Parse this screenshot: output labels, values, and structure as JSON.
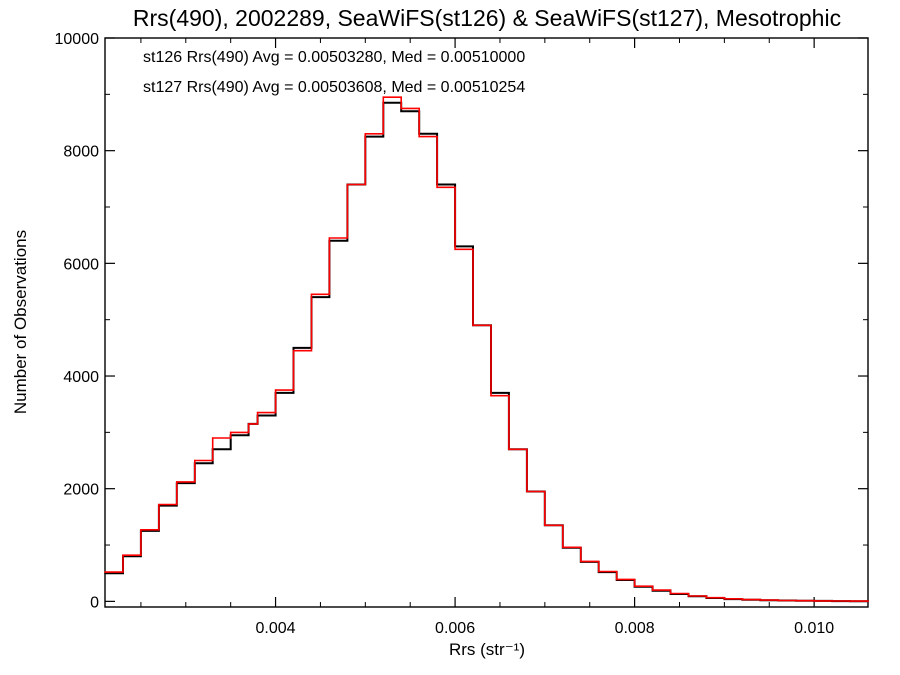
{
  "chart_data": {
    "type": "line",
    "title": "Rrs(490), 2002289, SeaWiFS(st126) & SeaWiFS(st127), Mesotrophic",
    "xlabel": "Rrs (str⁻¹)",
    "ylabel": "Number of Observations",
    "xlim": [
      0.0021,
      0.0106
    ],
    "ylim": [
      -100,
      10000
    ],
    "x_ticks": [
      0.004,
      0.006,
      0.008,
      0.01
    ],
    "x_tick_labels": [
      "0.004",
      "0.006",
      "0.008",
      "0.010"
    ],
    "y_ticks": [
      0,
      2000,
      4000,
      6000,
      8000,
      10000
    ],
    "y_tick_labels": [
      "0",
      "2000",
      "4000",
      "6000",
      "8000",
      "10000"
    ],
    "grid": false,
    "legend_position": "top-left",
    "series": [
      {
        "name": "st126",
        "color": "#000000",
        "annotation": "st126 Rrs(490) Avg = 0.00503280, Med = 0.00510000",
        "step": "histogram",
        "x": [
          0.0021,
          0.0023,
          0.0025,
          0.0027,
          0.0029,
          0.0031,
          0.0033,
          0.0035,
          0.0037,
          0.0038,
          0.004,
          0.0042,
          0.0044,
          0.0046,
          0.0048,
          0.005,
          0.0052,
          0.0054,
          0.0056,
          0.0058,
          0.006,
          0.0062,
          0.0064,
          0.0066,
          0.0068,
          0.007,
          0.0072,
          0.0074,
          0.0076,
          0.0078,
          0.008,
          0.0082,
          0.0084,
          0.0086,
          0.0088,
          0.009,
          0.0092,
          0.0094,
          0.0096,
          0.0098,
          0.01,
          0.0102,
          0.0104,
          0.0106
        ],
        "y": [
          500,
          800,
          1250,
          1700,
          2100,
          2450,
          2700,
          2950,
          3150,
          3300,
          3700,
          4500,
          5400,
          6400,
          7400,
          8250,
          8850,
          8700,
          8300,
          7400,
          6300,
          4900,
          3700,
          2700,
          1950,
          1350,
          950,
          700,
          520,
          380,
          260,
          190,
          130,
          90,
          60,
          40,
          30,
          20,
          15,
          10,
          8,
          5,
          3,
          2
        ]
      },
      {
        "name": "st127",
        "color": "#ff0000",
        "annotation": "st127 Rrs(490) Avg = 0.00503608, Med = 0.00510254",
        "step": "histogram",
        "x": [
          0.0021,
          0.0023,
          0.0025,
          0.0027,
          0.0029,
          0.0031,
          0.0033,
          0.0035,
          0.0037,
          0.0038,
          0.004,
          0.0042,
          0.0044,
          0.0046,
          0.0048,
          0.005,
          0.0052,
          0.0054,
          0.0056,
          0.0058,
          0.006,
          0.0062,
          0.0064,
          0.0066,
          0.0068,
          0.007,
          0.0072,
          0.0074,
          0.0076,
          0.0078,
          0.008,
          0.0082,
          0.0084,
          0.0086,
          0.0088,
          0.009,
          0.0092,
          0.0094,
          0.0096,
          0.0098,
          0.01,
          0.0102,
          0.0104,
          0.0106
        ],
        "y": [
          520,
          820,
          1270,
          1720,
          2120,
          2500,
          2900,
          3000,
          3150,
          3350,
          3750,
          4450,
          5450,
          6450,
          7400,
          8300,
          8950,
          8750,
          8250,
          7350,
          6250,
          4900,
          3650,
          2700,
          1950,
          1350,
          960,
          710,
          530,
          390,
          270,
          200,
          140,
          95,
          65,
          45,
          32,
          22,
          16,
          11,
          8,
          6,
          4,
          2
        ]
      }
    ]
  }
}
